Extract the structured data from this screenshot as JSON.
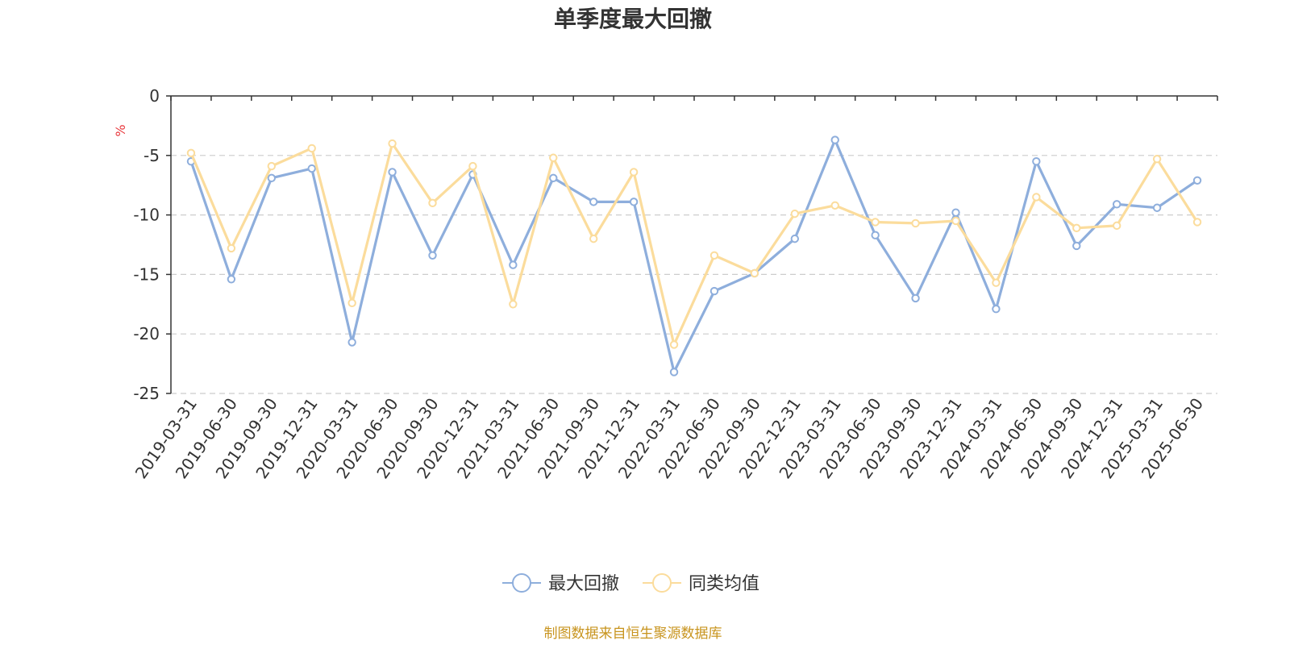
{
  "chart_data": {
    "type": "line",
    "title": "单季度最大回撤",
    "ylabel": "%",
    "ylim": [
      -25,
      0
    ],
    "yticks": [
      0,
      -5,
      -10,
      -15,
      -20,
      -25
    ],
    "grid": true,
    "legend_position": "bottom",
    "categories": [
      "2019-03-31",
      "2019-06-30",
      "2019-09-30",
      "2019-12-31",
      "2020-03-31",
      "2020-06-30",
      "2020-09-30",
      "2020-12-31",
      "2021-03-31",
      "2021-06-30",
      "2021-09-30",
      "2021-12-31",
      "2022-03-31",
      "2022-06-30",
      "2022-09-30",
      "2022-12-31",
      "2023-03-31",
      "2023-06-30",
      "2023-09-30",
      "2023-12-31",
      "2024-03-31",
      "2024-06-30",
      "2024-09-30",
      "2024-12-31",
      "2025-03-31",
      "2025-06-30"
    ],
    "series": [
      {
        "name": "最大回撤",
        "color": "#8eaedc",
        "values": [
          -5.5,
          -15.4,
          -6.9,
          -6.1,
          -20.7,
          -6.4,
          -13.4,
          -6.6,
          -14.2,
          -6.9,
          -8.9,
          -8.9,
          -23.2,
          -16.4,
          -14.9,
          -12.0,
          -3.7,
          -11.7,
          -17.0,
          -9.8,
          -17.9,
          -5.5,
          -12.6,
          -9.1,
          -9.4,
          -7.1
        ]
      },
      {
        "name": "同类均值",
        "color": "#fbdc9c",
        "values": [
          -4.8,
          -12.8,
          -5.9,
          -4.4,
          -17.4,
          -4.0,
          -9.0,
          -5.9,
          -17.5,
          -5.2,
          -12.0,
          -6.4,
          -20.9,
          -13.4,
          -14.9,
          -9.9,
          -9.2,
          -10.6,
          -10.7,
          -10.5,
          -15.7,
          -8.5,
          -11.1,
          -10.9,
          -5.3,
          -10.6
        ]
      }
    ],
    "source": "制图数据来自恒生聚源数据库"
  },
  "colors": {
    "axis": "#333333",
    "grid": "#cccccc",
    "unit": "#e8383d",
    "source": "#c8941e"
  }
}
